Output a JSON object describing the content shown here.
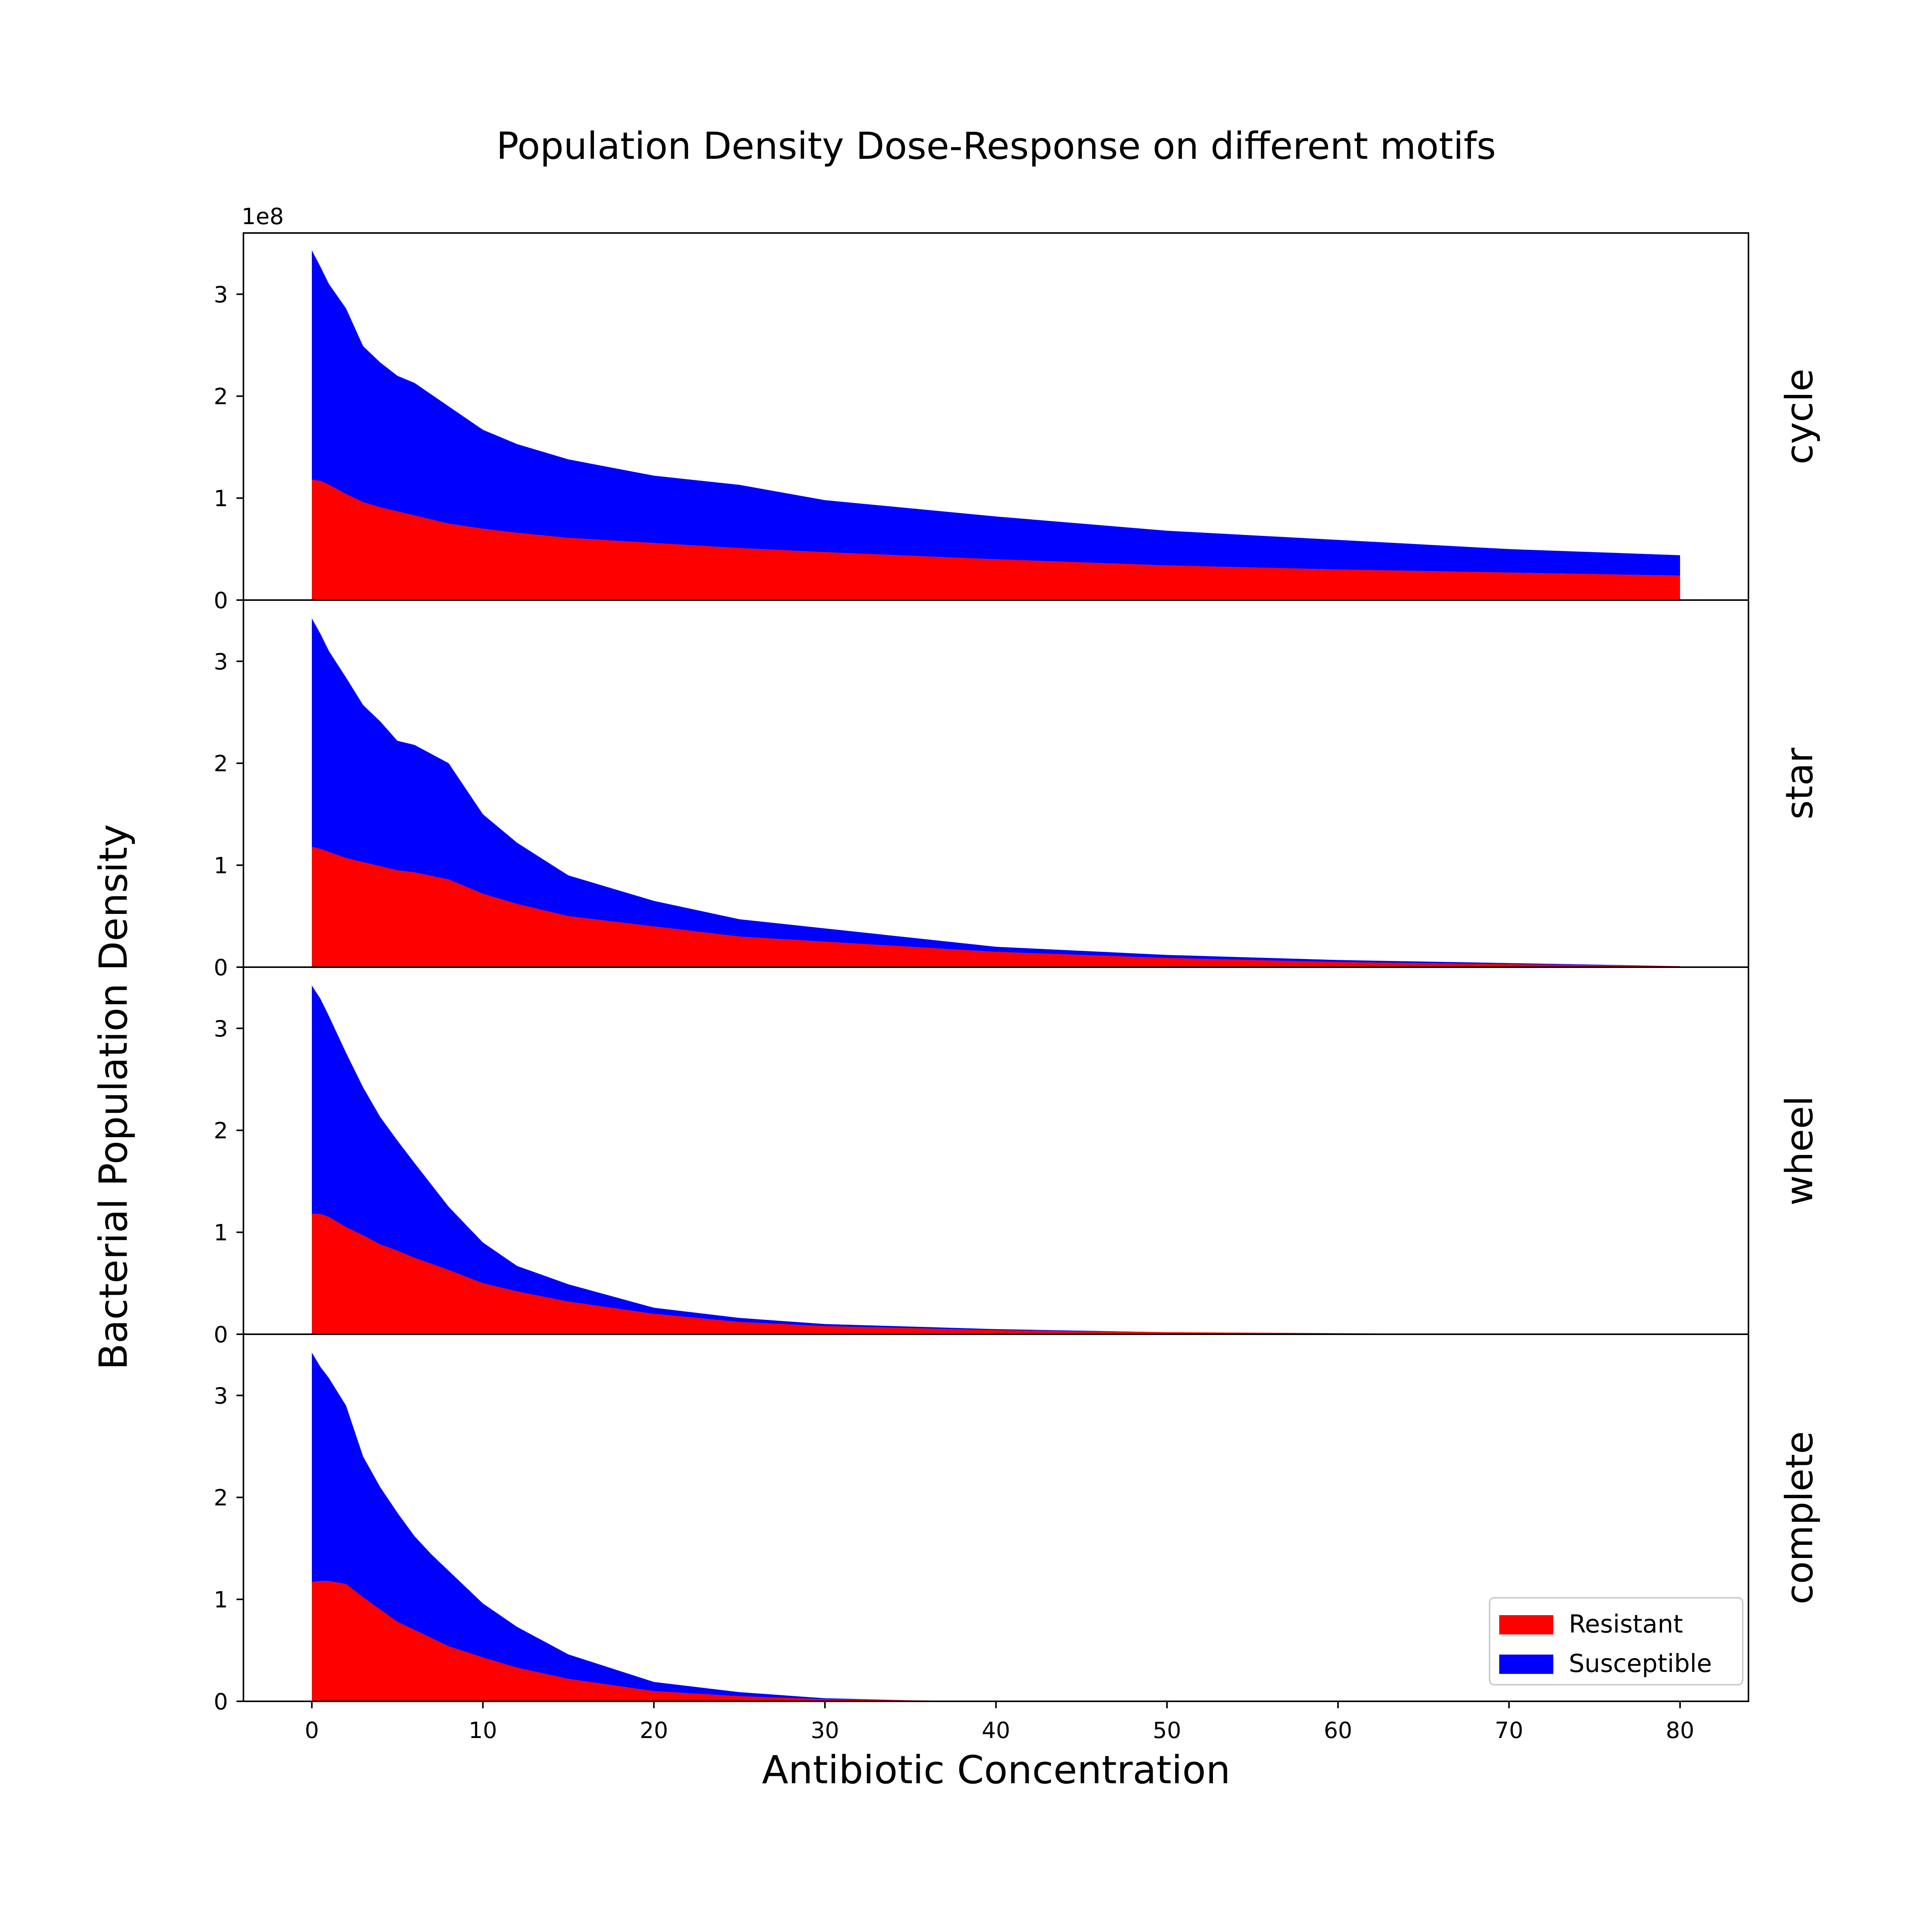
{
  "chart_data": {
    "type": "area",
    "stacked": true,
    "title": "Population Density Dose-Response on different motifs",
    "xlabel": "Antibiotic Concentration",
    "ylabel": "Bacterial Population Density",
    "y_offset_text": "1e8",
    "xlim": [
      -4,
      84
    ],
    "ylim": [
      0,
      3.6
    ],
    "x_ticks": [
      0,
      10,
      20,
      30,
      40,
      50,
      60,
      70,
      80
    ],
    "y_ticks": [
      0,
      1,
      2,
      3
    ],
    "legend": {
      "placement": "lower-right",
      "entries": [
        {
          "name": "Resistant",
          "color": "#ff0000"
        },
        {
          "name": "Susceptible",
          "color": "#0000ff"
        }
      ]
    },
    "panels": [
      {
        "label": "cycle",
        "x": [
          0,
          0.5,
          1,
          2,
          3,
          4,
          5,
          6,
          8,
          10,
          12,
          15,
          20,
          25,
          30,
          40,
          50,
          60,
          70,
          80
        ],
        "series": [
          {
            "name": "Resistant",
            "values": [
              1.18,
              1.17,
              1.13,
              1.04,
              0.96,
              0.91,
              0.87,
              0.83,
              0.75,
              0.7,
              0.66,
              0.61,
              0.56,
              0.51,
              0.47,
              0.4,
              0.34,
              0.3,
              0.27,
              0.24
            ]
          },
          {
            "name": "Susceptible",
            "values": [
              2.25,
              2.1,
              1.97,
              1.82,
              1.53,
              1.42,
              1.33,
              1.3,
              1.15,
              0.97,
              0.87,
              0.77,
              0.66,
              0.62,
              0.51,
              0.42,
              0.34,
              0.29,
              0.23,
              0.2
            ]
          }
        ]
      },
      {
        "label": "star",
        "x": [
          0,
          0.5,
          1,
          2,
          3,
          4,
          5,
          6,
          8,
          10,
          12,
          15,
          20,
          25,
          30,
          40,
          50,
          60,
          70,
          80
        ],
        "series": [
          {
            "name": "Resistant",
            "values": [
              1.18,
              1.16,
              1.13,
              1.07,
              1.03,
              0.99,
              0.95,
              0.93,
              0.86,
              0.72,
              0.62,
              0.5,
              0.4,
              0.3,
              0.25,
              0.15,
              0.09,
              0.05,
              0.03,
              0.01
            ]
          },
          {
            "name": "Susceptible",
            "values": [
              2.24,
              2.11,
              1.97,
              1.77,
              1.54,
              1.42,
              1.27,
              1.25,
              1.14,
              0.78,
              0.6,
              0.4,
              0.25,
              0.17,
              0.13,
              0.05,
              0.03,
              0.02,
              0.01,
              0.0
            ]
          }
        ]
      },
      {
        "label": "wheel",
        "x": [
          0,
          0.5,
          1,
          2,
          3,
          4,
          5,
          6,
          8,
          10,
          12,
          15,
          20,
          25,
          30,
          40,
          50,
          60,
          70,
          80
        ],
        "series": [
          {
            "name": "Resistant",
            "values": [
              1.18,
              1.18,
              1.15,
              1.05,
              0.97,
              0.88,
              0.82,
              0.75,
              0.63,
              0.5,
              0.42,
              0.32,
              0.2,
              0.12,
              0.08,
              0.04,
              0.02,
              0.01,
              0.0,
              0.0
            ]
          },
          {
            "name": "Susceptible",
            "values": [
              2.24,
              2.11,
              1.97,
              1.71,
              1.45,
              1.25,
              1.08,
              0.93,
              0.62,
              0.4,
              0.25,
              0.17,
              0.06,
              0.04,
              0.02,
              0.01,
              0.0,
              0.0,
              0.0,
              0.0
            ]
          }
        ]
      },
      {
        "label": "complete",
        "x": [
          0,
          0.5,
          1,
          2,
          3,
          4,
          5,
          6,
          7,
          8,
          10,
          12,
          15,
          20,
          25,
          30,
          35,
          40,
          50,
          60,
          70,
          80
        ],
        "series": [
          {
            "name": "Resistant",
            "values": [
              1.17,
              1.18,
              1.18,
              1.15,
              1.02,
              0.9,
              0.78,
              0.7,
              0.62,
              0.54,
              0.43,
              0.33,
              0.22,
              0.1,
              0.05,
              0.02,
              0.01,
              0.0,
              0.0,
              0.0,
              0.0,
              0.0
            ]
          },
          {
            "name": "Susceptible",
            "values": [
              2.25,
              2.1,
              1.99,
              1.75,
              1.38,
              1.2,
              1.07,
              0.92,
              0.82,
              0.74,
              0.53,
              0.4,
              0.24,
              0.09,
              0.04,
              0.01,
              0.0,
              0.0,
              0.0,
              0.0,
              0.0,
              0.0
            ]
          }
        ]
      }
    ]
  }
}
